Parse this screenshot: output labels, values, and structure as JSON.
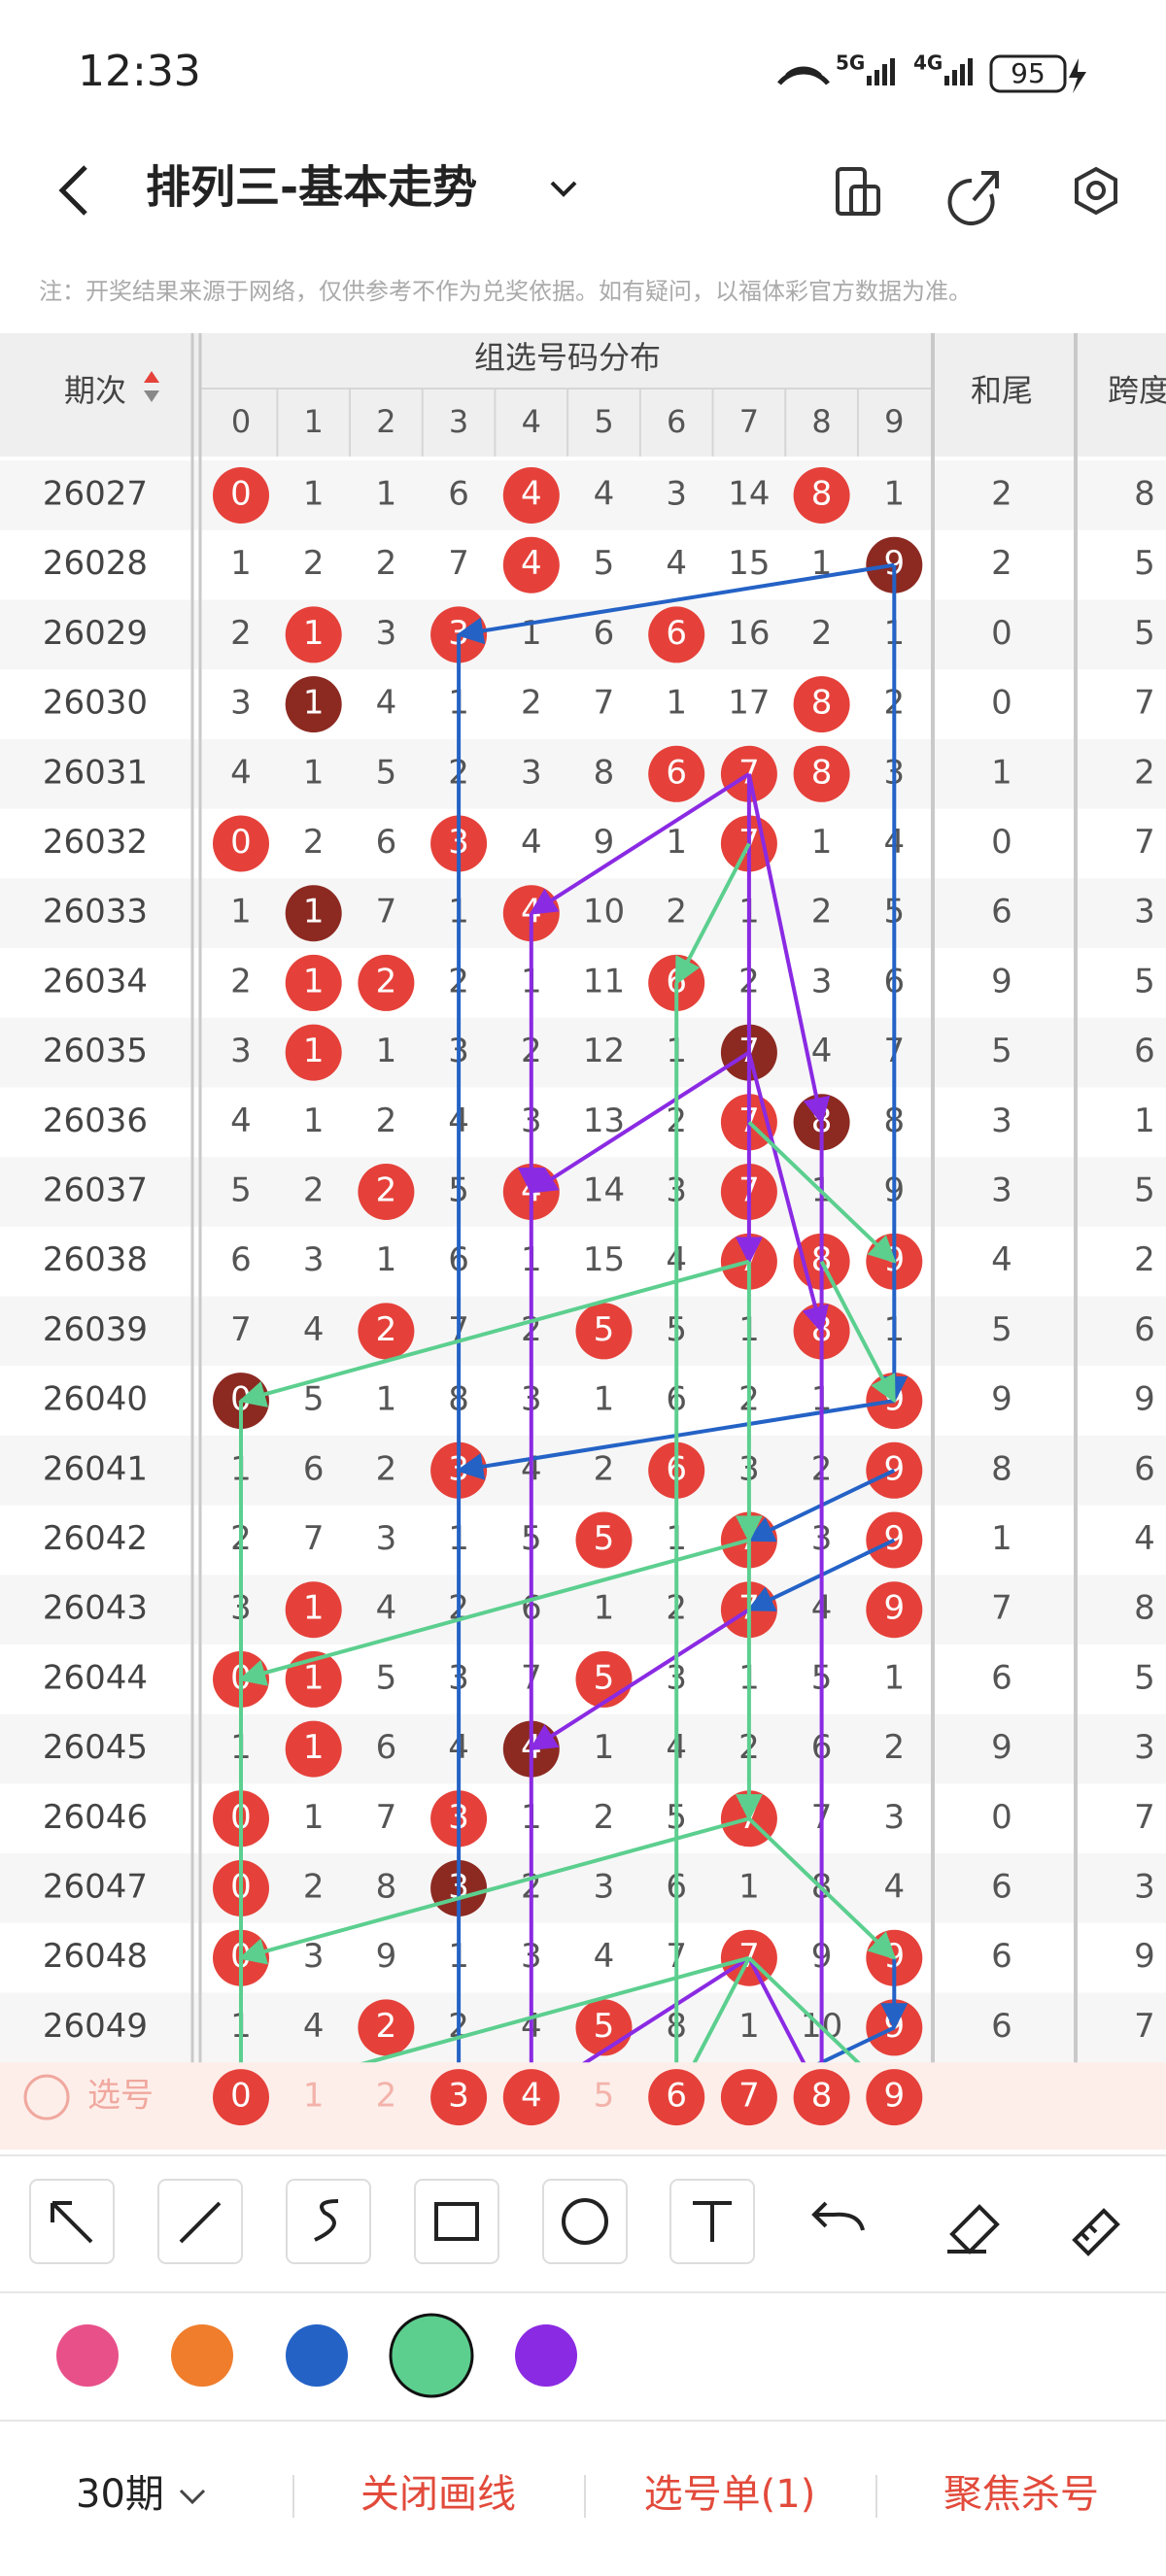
{
  "status_bar": {
    "time": "12:33",
    "net1": "5G",
    "net2": "4G",
    "battery": "95"
  },
  "header": {
    "title": "排列三-基本走势"
  },
  "note": "注：开奖结果来源于网络，仅供参考不作为兑奖依据。如有疑问，以福体彩官方数据为准。",
  "table": {
    "col_issue": "期次",
    "col_group": "组选号码分布",
    "digits": [
      0,
      1,
      2,
      3,
      4,
      5,
      6,
      7,
      8,
      9
    ],
    "col_sum_tail": "和尾",
    "col_span": "跨度",
    "rows": [
      {
        "issue": "26027",
        "cells": [
          0,
          1,
          1,
          6,
          4,
          4,
          3,
          14,
          8,
          1
        ],
        "drawn": [
          0,
          4,
          8
        ],
        "dark": [],
        "sum_tail": 2,
        "span": 8
      },
      {
        "issue": "26028",
        "cells": [
          1,
          2,
          2,
          7,
          4,
          5,
          4,
          15,
          1,
          9
        ],
        "drawn": [
          4
        ],
        "dark": [
          9
        ],
        "sum_tail": 2,
        "span": 5
      },
      {
        "issue": "26029",
        "cells": [
          2,
          1,
          3,
          3,
          1,
          6,
          6,
          16,
          2,
          1
        ],
        "drawn": [
          1,
          3,
          6
        ],
        "dark": [],
        "sum_tail": 0,
        "span": 5
      },
      {
        "issue": "26030",
        "cells": [
          3,
          1,
          4,
          1,
          2,
          7,
          1,
          17,
          8,
          2
        ],
        "drawn": [
          8
        ],
        "dark": [
          1
        ],
        "sum_tail": 0,
        "span": 7
      },
      {
        "issue": "26031",
        "cells": [
          4,
          1,
          5,
          2,
          3,
          8,
          6,
          7,
          8,
          3
        ],
        "drawn": [
          6,
          7,
          8
        ],
        "dark": [],
        "sum_tail": 1,
        "span": 2
      },
      {
        "issue": "26032",
        "cells": [
          0,
          2,
          6,
          3,
          4,
          9,
          1,
          7,
          1,
          4
        ],
        "drawn": [
          0,
          3,
          7
        ],
        "dark": [],
        "sum_tail": 0,
        "span": 7
      },
      {
        "issue": "26033",
        "cells": [
          1,
          1,
          7,
          1,
          4,
          10,
          2,
          1,
          2,
          5
        ],
        "drawn": [
          4
        ],
        "dark": [
          1
        ],
        "sum_tail": 6,
        "span": 3
      },
      {
        "issue": "26034",
        "cells": [
          2,
          1,
          2,
          2,
          1,
          11,
          6,
          2,
          3,
          6
        ],
        "drawn": [
          1,
          2,
          6
        ],
        "dark": [],
        "sum_tail": 9,
        "span": 5
      },
      {
        "issue": "26035",
        "cells": [
          3,
          1,
          1,
          3,
          2,
          12,
          1,
          7,
          4,
          7
        ],
        "drawn": [
          1
        ],
        "dark": [
          7
        ],
        "sum_tail": 5,
        "span": 6
      },
      {
        "issue": "26036",
        "cells": [
          4,
          1,
          2,
          4,
          3,
          13,
          2,
          7,
          8,
          8
        ],
        "drawn": [
          7
        ],
        "dark": [
          8
        ],
        "sum_tail": 3,
        "span": 1
      },
      {
        "issue": "26037",
        "cells": [
          5,
          2,
          2,
          5,
          4,
          14,
          3,
          7,
          1,
          9
        ],
        "drawn": [
          2,
          4,
          7
        ],
        "dark": [],
        "sum_tail": 3,
        "span": 5
      },
      {
        "issue": "26038",
        "cells": [
          6,
          3,
          1,
          6,
          1,
          15,
          4,
          7,
          8,
          9
        ],
        "drawn": [
          7,
          8,
          9
        ],
        "dark": [],
        "sum_tail": 4,
        "span": 2
      },
      {
        "issue": "26039",
        "cells": [
          7,
          4,
          2,
          7,
          2,
          5,
          5,
          1,
          8,
          1
        ],
        "drawn": [
          2,
          5,
          8
        ],
        "dark": [],
        "sum_tail": 5,
        "span": 6
      },
      {
        "issue": "26040",
        "cells": [
          0,
          5,
          1,
          8,
          3,
          1,
          6,
          2,
          1,
          9
        ],
        "drawn": [
          9
        ],
        "dark": [
          0
        ],
        "sum_tail": 9,
        "span": 9
      },
      {
        "issue": "26041",
        "cells": [
          1,
          6,
          2,
          3,
          4,
          2,
          6,
          3,
          2,
          9
        ],
        "drawn": [
          3,
          6,
          9
        ],
        "dark": [],
        "sum_tail": 8,
        "span": 6
      },
      {
        "issue": "26042",
        "cells": [
          2,
          7,
          3,
          1,
          5,
          5,
          1,
          7,
          3,
          9
        ],
        "drawn": [
          5,
          7,
          9
        ],
        "dark": [],
        "sum_tail": 1,
        "span": 4
      },
      {
        "issue": "26043",
        "cells": [
          3,
          1,
          4,
          2,
          6,
          1,
          2,
          7,
          4,
          9
        ],
        "drawn": [
          1,
          7,
          9
        ],
        "dark": [],
        "sum_tail": 7,
        "span": 8
      },
      {
        "issue": "26044",
        "cells": [
          0,
          1,
          5,
          3,
          7,
          5,
          3,
          1,
          5,
          1
        ],
        "drawn": [
          0,
          1,
          5
        ],
        "dark": [],
        "sum_tail": 6,
        "span": 5
      },
      {
        "issue": "26045",
        "cells": [
          1,
          1,
          6,
          4,
          4,
          1,
          4,
          2,
          6,
          2
        ],
        "drawn": [
          1
        ],
        "dark": [
          4
        ],
        "sum_tail": 9,
        "span": 3
      },
      {
        "issue": "26046",
        "cells": [
          0,
          1,
          7,
          3,
          1,
          2,
          5,
          7,
          7,
          3
        ],
        "drawn": [
          0,
          3,
          7
        ],
        "dark": [],
        "sum_tail": 0,
        "span": 7
      },
      {
        "issue": "26047",
        "cells": [
          0,
          2,
          8,
          3,
          2,
          3,
          6,
          1,
          8,
          4
        ],
        "drawn": [
          0
        ],
        "dark": [
          3
        ],
        "sum_tail": 6,
        "span": 3
      },
      {
        "issue": "26048",
        "cells": [
          0,
          3,
          9,
          1,
          3,
          4,
          7,
          7,
          9,
          9
        ],
        "drawn": [
          0,
          7,
          9
        ],
        "dark": [],
        "sum_tail": 6,
        "span": 9
      },
      {
        "issue": "26049",
        "cells": [
          1,
          4,
          2,
          2,
          4,
          5,
          8,
          1,
          10,
          9
        ],
        "drawn": [
          2,
          5,
          9
        ],
        "dark": [],
        "sum_tail": 6,
        "span": 7
      }
    ],
    "select_label": "选号",
    "selected": [
      0,
      3,
      4,
      6,
      7,
      8,
      9
    ]
  },
  "palette": {
    "colors": [
      "#e8508a",
      "#ef7d2c",
      "#2462c6",
      "#5ccf8f",
      "#8a2ae3"
    ],
    "active": 3
  },
  "bottom_bar": {
    "periods": "30期",
    "close_lines": "关闭画线",
    "pick_list": "选号单(1)",
    "focus_kill": "聚焦杀号"
  }
}
